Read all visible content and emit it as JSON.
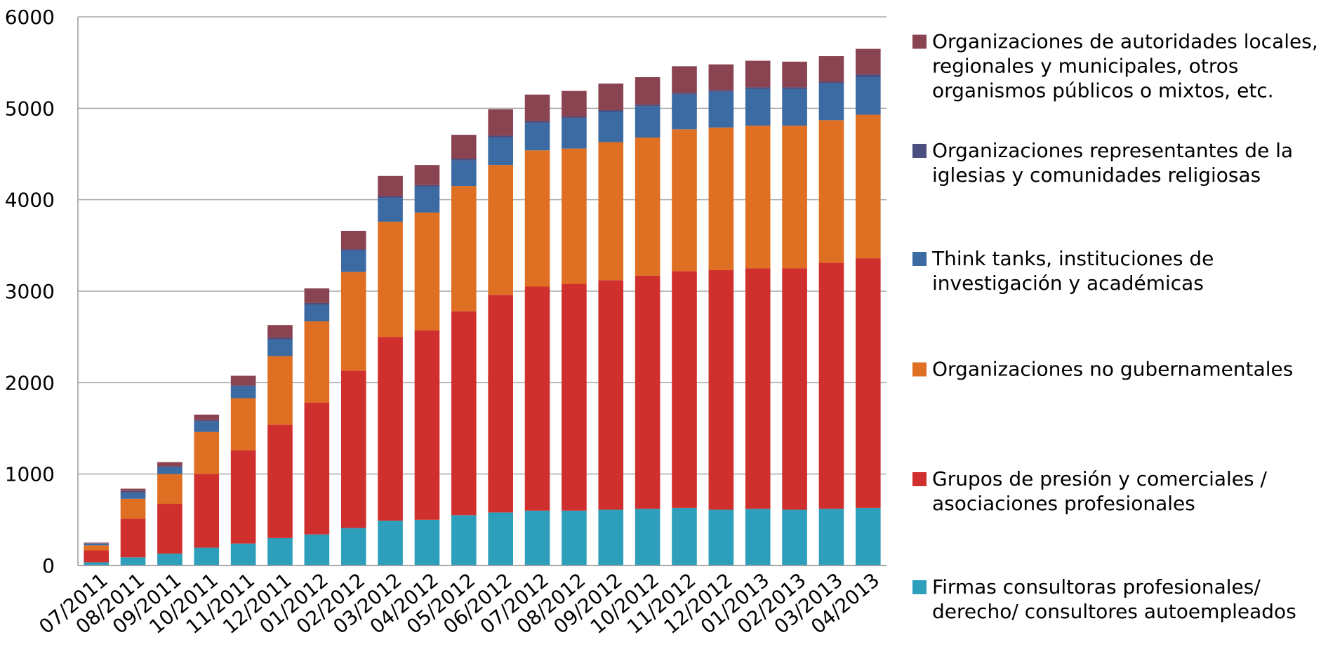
{
  "chart_data": {
    "type": "stacked_bar",
    "categories": [
      "07/2011",
      "08/2011",
      "09/2011",
      "10/2011",
      "11/2011",
      "12/2011",
      "01/2012",
      "02/2012",
      "03/2012",
      "04/2012",
      "05/2012",
      "06/2012",
      "07/2012",
      "08/2012",
      "09/2012",
      "10/2012",
      "11/2012",
      "12/2012",
      "01/2013",
      "02/2013",
      "03/2013",
      "04/2013"
    ],
    "series": [
      {
        "name": "Firmas consultoras profesionales/ derecho/ consultores autoempleados",
        "color": "#2e9fbb",
        "values": [
          35,
          90,
          130,
          195,
          240,
          300,
          340,
          410,
          490,
          500,
          550,
          580,
          600,
          600,
          610,
          620,
          630,
          610,
          620,
          610,
          620,
          630
        ]
      },
      {
        "name": "Grupos de presión y comerciales / asociaciones profesionales",
        "color": "#d0302d",
        "values": [
          130,
          420,
          545,
          805,
          1020,
          1240,
          1440,
          1720,
          2010,
          2070,
          2230,
          2380,
          2450,
          2480,
          2510,
          2550,
          2590,
          2620,
          2630,
          2640,
          2690,
          2730
        ]
      },
      {
        "name": "Organizaciones no gubernamentales",
        "color": "#df6f22",
        "values": [
          55,
          220,
          325,
          460,
          570,
          750,
          890,
          1080,
          1260,
          1290,
          1370,
          1420,
          1490,
          1480,
          1510,
          1510,
          1550,
          1560,
          1560,
          1560,
          1560,
          1570
        ]
      },
      {
        "name": "Think tanks, instituciones de investigación y académicas",
        "color": "#3c6aa3",
        "values": [
          20,
          65,
          75,
          115,
          125,
          180,
          180,
          230,
          260,
          280,
          280,
          300,
          300,
          330,
          330,
          340,
          380,
          390,
          400,
          400,
          400,
          410
        ]
      },
      {
        "name": "Organizaciones representantes de la iglesias y comunidades religiosas",
        "color": "#4a4f80",
        "values": [
          3,
          20,
          10,
          15,
          15,
          20,
          20,
          20,
          20,
          20,
          20,
          20,
          20,
          20,
          20,
          20,
          20,
          20,
          20,
          20,
          20,
          30
        ]
      },
      {
        "name": "Organizaciones de autoridades locales, regionales y municipales, otros organismos públicos o mixtos, etc.",
        "color": "#8a4350",
        "values": [
          7,
          25,
          45,
          60,
          105,
          140,
          160,
          200,
          220,
          220,
          260,
          290,
          290,
          280,
          290,
          300,
          290,
          280,
          290,
          280,
          280,
          280
        ]
      }
    ],
    "ylim": [
      0,
      6000
    ],
    "yticks": [
      0,
      1000,
      2000,
      3000,
      4000,
      5000,
      6000
    ],
    "grid": true,
    "legend": "right"
  }
}
